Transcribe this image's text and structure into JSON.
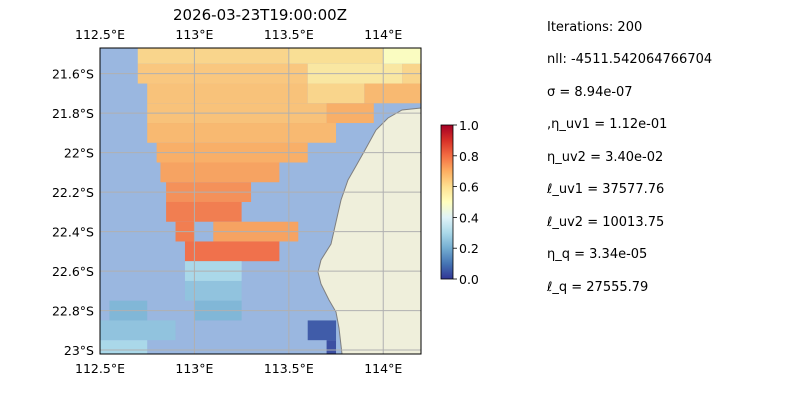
{
  "chart_data": {
    "type": "heatmap",
    "title": "2026-03-23T19:00:00Z",
    "xlabel": "",
    "ylabel": "",
    "x_ticks": [
      112.5,
      113.0,
      113.5,
      114.0
    ],
    "x_tick_labels": [
      "112.5°E",
      "113°E",
      "113.5°E",
      "114°E"
    ],
    "y_ticks": [
      -21.6,
      -21.8,
      -22.0,
      -22.2,
      -22.4,
      -22.6,
      -22.8,
      -23.0
    ],
    "y_tick_labels": [
      "21.6°S",
      "21.8°S",
      "22°S",
      "22.2°S",
      "22.4°S",
      "22.6°S",
      "22.8°S",
      "23°S"
    ],
    "xlim": [
      112.5,
      114.2
    ],
    "ylim": [
      -23.02,
      -21.47
    ],
    "grid": true,
    "colorbar": {
      "ticks": [
        0.0,
        0.2,
        0.4,
        0.6,
        0.8,
        1.0
      ],
      "tick_labels": [
        "0.0",
        "0.2",
        "0.4",
        "0.6",
        "0.8",
        "1.0"
      ],
      "vmin": 0.0,
      "vmax": 1.0,
      "colormap": "RdYlBu_r"
    },
    "colors": {
      "ocean": "#9ab7e0",
      "land": "#efefdb",
      "coast": "#7f7f7f",
      "grid": "#b0b0b0"
    },
    "value_rows": [
      [
        -21.5,
        [
          [
            112.7,
            113.5,
            0.62
          ],
          [
            113.5,
            114.0,
            0.6
          ],
          [
            114.0,
            114.2,
            0.5
          ]
        ]
      ],
      [
        -21.6,
        [
          [
            112.7,
            113.6,
            0.65
          ],
          [
            113.6,
            114.1,
            0.57
          ],
          [
            114.1,
            114.2,
            0.62
          ]
        ]
      ],
      [
        -21.7,
        [
          [
            112.75,
            113.6,
            0.66
          ],
          [
            113.6,
            113.9,
            0.62
          ],
          [
            113.9,
            114.2,
            0.68
          ]
        ]
      ],
      [
        -21.8,
        [
          [
            112.75,
            113.7,
            0.66
          ],
          [
            113.7,
            113.95,
            0.7
          ]
        ]
      ],
      [
        -21.9,
        [
          [
            112.75,
            113.75,
            0.68
          ]
        ]
      ],
      [
        -22.0,
        [
          [
            112.8,
            113.6,
            0.7
          ]
        ]
      ],
      [
        -22.1,
        [
          [
            112.82,
            113.45,
            0.72
          ]
        ]
      ],
      [
        -22.2,
        [
          [
            112.85,
            113.3,
            0.75
          ]
        ]
      ],
      [
        -22.3,
        [
          [
            112.85,
            113.25,
            0.78
          ]
        ]
      ],
      [
        -22.4,
        [
          [
            112.9,
            113.0,
            0.78
          ],
          [
            113.1,
            113.55,
            0.72
          ]
        ]
      ],
      [
        -22.5,
        [
          [
            112.95,
            113.45,
            0.8
          ]
        ]
      ],
      [
        -22.6,
        [
          [
            112.95,
            113.25,
            0.3
          ]
        ]
      ],
      [
        -22.7,
        [
          [
            112.95,
            113.25,
            0.25
          ]
        ]
      ],
      [
        -22.8,
        [
          [
            112.55,
            112.75,
            0.22
          ],
          [
            113.0,
            113.25,
            0.22
          ]
        ]
      ],
      [
        -22.9,
        [
          [
            112.5,
            112.9,
            0.25
          ],
          [
            113.6,
            113.75,
            0.05
          ]
        ]
      ],
      [
        -23.0,
        [
          [
            112.5,
            112.75,
            0.3
          ],
          [
            113.7,
            113.75,
            0.03
          ]
        ]
      ]
    ]
  },
  "stats": {
    "iterations": "Iterations: 200",
    "nll": "nll: -4511.542064766704",
    "sigma": "σ = 8.94e-07",
    "eta_uv1": ",η_uv1 = 1.12e-01",
    "eta_uv2": "η_uv2 = 3.40e-02",
    "ell_uv1": "ℓ_uv1 = 37577.76",
    "ell_uv2": "ℓ_uv2 = 10013.75",
    "eta_q": "η_q = 3.34e-05",
    "ell_q": "ℓ_q = 27555.79"
  }
}
